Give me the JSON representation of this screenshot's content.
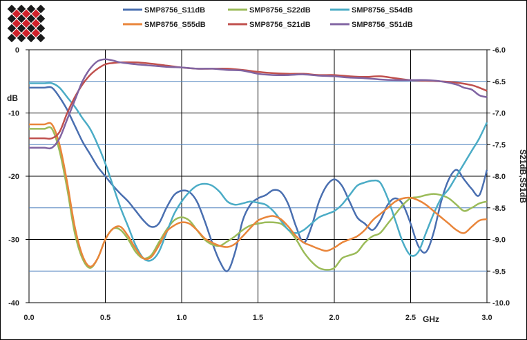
{
  "chart_data": {
    "type": "line",
    "xlabel": "GHz",
    "ylabel": "dB",
    "y2label": "S21dB,S51dB",
    "xlim": [
      0.0,
      3.0
    ],
    "ylim": [
      -40,
      0
    ],
    "y2lim": [
      -10.0,
      -6.0
    ],
    "x_ticks": [
      "0.0",
      "0.5",
      "1.0",
      "1.5",
      "2.0",
      "2.5",
      "3.0"
    ],
    "y_ticks": [
      "0",
      "-10",
      "-20",
      "-30",
      "-40"
    ],
    "y2_ticks": [
      "-6.0",
      "-6.5",
      "-7.0",
      "-7.5",
      "-8.0",
      "-8.5",
      "-9.0",
      "-9.5",
      "-10.0"
    ],
    "grid": {
      "vertical": true,
      "horizontal_right_axis": true
    },
    "legend_position": "top",
    "logo": "diamond-checker-logo",
    "colors": {
      "frame": "#000000",
      "grid": "#000000",
      "hgrid": "#4f81bd"
    },
    "series": [
      {
        "name": "SMP8756_S11dB",
        "axis": "left",
        "color": "#4a6fb0",
        "x": [
          0,
          0.05,
          0.1,
          0.15,
          0.2,
          0.25,
          0.3,
          0.35,
          0.4,
          0.45,
          0.5,
          0.55,
          0.6,
          0.65,
          0.7,
          0.75,
          0.8,
          0.85,
          0.9,
          0.95,
          1.0,
          1.05,
          1.1,
          1.15,
          1.2,
          1.25,
          1.3,
          1.35,
          1.4,
          1.45,
          1.5,
          1.55,
          1.6,
          1.65,
          1.7,
          1.75,
          1.8,
          1.85,
          1.9,
          1.95,
          2.0,
          2.05,
          2.1,
          2.15,
          2.2,
          2.25,
          2.3,
          2.35,
          2.4,
          2.45,
          2.5,
          2.55,
          2.6,
          2.65,
          2.7,
          2.75,
          2.8,
          2.85,
          2.9,
          2.95,
          3.0
        ],
        "y": [
          -6,
          -6,
          -6,
          -6,
          -7.5,
          -9.5,
          -12,
          -14.5,
          -16.5,
          -18.5,
          -20,
          -21.5,
          -22.8,
          -24,
          -25.5,
          -27,
          -28,
          -27.5,
          -25,
          -23,
          -22.3,
          -22.5,
          -24,
          -27,
          -30.5,
          -33.5,
          -35,
          -32,
          -27,
          -24.5,
          -23.5,
          -23,
          -22.2,
          -22.5,
          -24.5,
          -28,
          -30.5,
          -28,
          -24,
          -21.5,
          -20.5,
          -21.5,
          -24,
          -26.5,
          -27.5,
          -28.5,
          -27,
          -24.5,
          -23.5,
          -24.5,
          -27.5,
          -31,
          -32,
          -29,
          -24,
          -20.5,
          -19,
          -20.5,
          -22,
          -23,
          -19
        ]
      },
      {
        "name": "SMP8756_S22dB",
        "axis": "left",
        "color": "#9bbb59",
        "x": [
          0,
          0.05,
          0.1,
          0.15,
          0.2,
          0.25,
          0.3,
          0.35,
          0.4,
          0.45,
          0.5,
          0.55,
          0.6,
          0.65,
          0.7,
          0.75,
          0.8,
          0.85,
          0.9,
          0.95,
          1.0,
          1.05,
          1.1,
          1.15,
          1.2,
          1.25,
          1.3,
          1.35,
          1.4,
          1.45,
          1.5,
          1.55,
          1.6,
          1.65,
          1.7,
          1.75,
          1.8,
          1.85,
          1.9,
          1.95,
          2.0,
          2.05,
          2.1,
          2.15,
          2.2,
          2.25,
          2.3,
          2.35,
          2.4,
          2.45,
          2.5,
          2.55,
          2.6,
          2.65,
          2.7,
          2.75,
          2.8,
          2.85,
          2.9,
          2.95,
          3.0
        ],
        "y": [
          -12.5,
          -12.5,
          -12.5,
          -12.5,
          -16,
          -22,
          -29,
          -33,
          -34.5,
          -33,
          -30,
          -28.3,
          -28.5,
          -30,
          -32,
          -33,
          -32.5,
          -30.5,
          -28.5,
          -27,
          -26.5,
          -27,
          -28.5,
          -30,
          -30.8,
          -31,
          -30.3,
          -29.5,
          -28.5,
          -27.8,
          -27.5,
          -27.3,
          -27.3,
          -27.5,
          -28.5,
          -30,
          -32,
          -33.5,
          -34.5,
          -34.8,
          -34.5,
          -33,
          -32.5,
          -32,
          -30.5,
          -29.5,
          -29,
          -27.5,
          -26,
          -24.5,
          -23.5,
          -23.3,
          -23,
          -22.8,
          -23,
          -23.5,
          -24.5,
          -25.5,
          -25,
          -24.3,
          -24
        ]
      },
      {
        "name": "SMP8756_S54dB",
        "axis": "left",
        "color": "#4bacc6",
        "x": [
          0,
          0.05,
          0.1,
          0.15,
          0.2,
          0.25,
          0.3,
          0.35,
          0.4,
          0.45,
          0.5,
          0.55,
          0.6,
          0.65,
          0.7,
          0.75,
          0.8,
          0.85,
          0.9,
          0.95,
          1.0,
          1.05,
          1.1,
          1.15,
          1.2,
          1.25,
          1.3,
          1.35,
          1.4,
          1.45,
          1.5,
          1.55,
          1.6,
          1.65,
          1.7,
          1.75,
          1.8,
          1.85,
          1.9,
          1.95,
          2.0,
          2.05,
          2.1,
          2.15,
          2.2,
          2.25,
          2.3,
          2.35,
          2.4,
          2.45,
          2.5,
          2.55,
          2.6,
          2.65,
          2.7,
          2.75,
          2.8,
          2.85,
          2.9,
          2.95,
          3.0
        ],
        "y": [
          -5.3,
          -5.3,
          -5.3,
          -5.3,
          -6,
          -7.5,
          -9,
          -10.8,
          -12.5,
          -15,
          -18,
          -21.5,
          -25,
          -28,
          -31,
          -33,
          -33.3,
          -32,
          -29,
          -26,
          -24,
          -22.5,
          -21.5,
          -21.2,
          -21.5,
          -22.5,
          -24,
          -24.5,
          -24.3,
          -24,
          -24.2,
          -24.5,
          -25.5,
          -27,
          -28.5,
          -29,
          -28.5,
          -27.5,
          -26.5,
          -26,
          -25.5,
          -24.5,
          -23,
          -21.5,
          -21,
          -20.7,
          -21,
          -23.5,
          -27,
          -30.5,
          -32.5,
          -32,
          -29,
          -26,
          -23.5,
          -22,
          -20,
          -18,
          -16,
          -14,
          -11.5
        ]
      },
      {
        "name": "SMP8756_S55dB",
        "axis": "left",
        "color": "#e9853a",
        "x": [
          0,
          0.05,
          0.1,
          0.15,
          0.2,
          0.25,
          0.3,
          0.35,
          0.4,
          0.45,
          0.5,
          0.55,
          0.6,
          0.65,
          0.7,
          0.75,
          0.8,
          0.85,
          0.9,
          0.95,
          1.0,
          1.05,
          1.1,
          1.15,
          1.2,
          1.25,
          1.3,
          1.35,
          1.4,
          1.45,
          1.5,
          1.55,
          1.6,
          1.65,
          1.7,
          1.75,
          1.8,
          1.85,
          1.9,
          1.95,
          2.0,
          2.05,
          2.1,
          2.15,
          2.2,
          2.25,
          2.3,
          2.35,
          2.4,
          2.45,
          2.5,
          2.55,
          2.6,
          2.65,
          2.7,
          2.75,
          2.8,
          2.85,
          2.9,
          2.95,
          3.0
        ],
        "y": [
          -11.8,
          -11.8,
          -11.8,
          -11.8,
          -15,
          -21,
          -28,
          -32.5,
          -34.3,
          -33,
          -30,
          -28.3,
          -28,
          -29.5,
          -31.5,
          -33,
          -32.8,
          -31,
          -28.8,
          -27.8,
          -27.3,
          -27.5,
          -28.5,
          -29.8,
          -30.5,
          -31,
          -31.2,
          -30.7,
          -29.5,
          -28.2,
          -27,
          -26.5,
          -26.3,
          -26.8,
          -28,
          -29.5,
          -30.5,
          -31,
          -31.5,
          -31.8,
          -31.3,
          -30.5,
          -30,
          -29.5,
          -28.5,
          -27,
          -26,
          -25,
          -24,
          -23.5,
          -23.4,
          -23.8,
          -24.5,
          -25.5,
          -26.5,
          -27.5,
          -28.5,
          -29,
          -28,
          -27,
          -26.8
        ]
      },
      {
        "name": "SMP8756_S21dB",
        "axis": "right",
        "color": "#c0504d",
        "x": [
          0,
          0.05,
          0.1,
          0.15,
          0.2,
          0.25,
          0.3,
          0.35,
          0.4,
          0.45,
          0.5,
          0.55,
          0.6,
          0.7,
          0.8,
          0.9,
          1.0,
          1.1,
          1.2,
          1.3,
          1.4,
          1.5,
          1.6,
          1.7,
          1.8,
          1.9,
          2.0,
          2.1,
          2.2,
          2.3,
          2.4,
          2.5,
          2.6,
          2.7,
          2.8,
          2.9,
          2.95,
          3.0
        ],
        "y": [
          -7.4,
          -7.4,
          -7.4,
          -7.4,
          -7.3,
          -7.0,
          -6.75,
          -6.55,
          -6.4,
          -6.3,
          -6.23,
          -6.21,
          -6.2,
          -6.2,
          -6.22,
          -6.25,
          -6.28,
          -6.3,
          -6.3,
          -6.3,
          -6.32,
          -6.35,
          -6.37,
          -6.38,
          -6.38,
          -6.4,
          -6.4,
          -6.42,
          -6.43,
          -6.42,
          -6.45,
          -6.48,
          -6.49,
          -6.5,
          -6.52,
          -6.56,
          -6.6,
          -6.65
        ]
      },
      {
        "name": "SMP8756_S51dB",
        "axis": "right",
        "color": "#8064a2",
        "x": [
          0,
          0.05,
          0.1,
          0.15,
          0.2,
          0.25,
          0.3,
          0.35,
          0.4,
          0.45,
          0.5,
          0.55,
          0.6,
          0.7,
          0.8,
          0.9,
          1.0,
          1.1,
          1.2,
          1.3,
          1.4,
          1.5,
          1.6,
          1.7,
          1.8,
          1.9,
          2.0,
          2.1,
          2.2,
          2.3,
          2.4,
          2.5,
          2.6,
          2.7,
          2.8,
          2.85,
          2.9,
          2.95,
          3.0
        ],
        "y": [
          -7.55,
          -7.55,
          -7.55,
          -7.55,
          -7.4,
          -7.1,
          -6.8,
          -6.5,
          -6.3,
          -6.18,
          -6.15,
          -6.17,
          -6.2,
          -6.23,
          -6.25,
          -6.27,
          -6.28,
          -6.3,
          -6.3,
          -6.32,
          -6.33,
          -6.38,
          -6.4,
          -6.4,
          -6.39,
          -6.41,
          -6.42,
          -6.44,
          -6.45,
          -6.47,
          -6.48,
          -6.48,
          -6.48,
          -6.5,
          -6.55,
          -6.6,
          -6.63,
          -6.72,
          -6.75
        ]
      }
    ]
  }
}
